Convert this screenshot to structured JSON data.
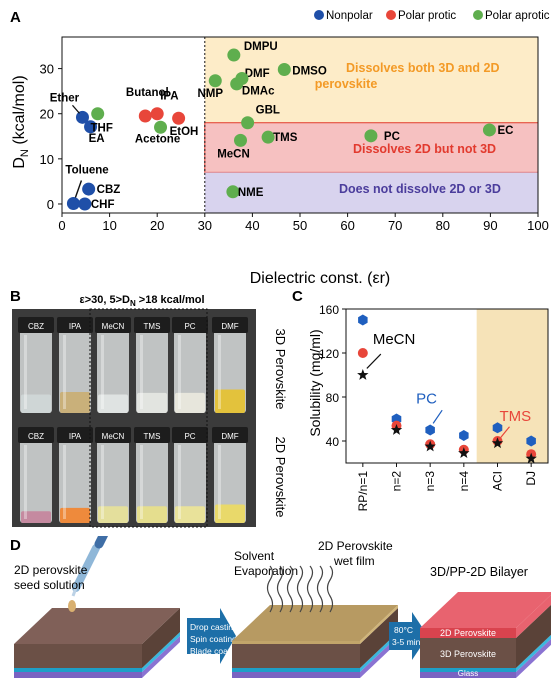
{
  "panel_labels": {
    "a": "A",
    "b": "B",
    "c": "C",
    "d": "D"
  },
  "colors": {
    "nonpolar": "#1f4fa8",
    "polar_protic": "#e8463a",
    "polar_aprotic": "#5fae4e",
    "region_both": "#fdecc8",
    "region_2d": "#f6c1c1",
    "region_none": "#d8d3ee",
    "text_orange": "#f39a26",
    "text_red": "#e23a2e",
    "text_purple": "#4b3d9c",
    "pc_blue": "#1f5fbf",
    "tms_red": "#e8463a",
    "aci_band": "#f6e3b8"
  },
  "chart_data": [
    {
      "type": "scatter",
      "title": "",
      "xlabel": "Dielectric const. (εr)",
      "ylabel": "DN (kcal/mol)",
      "xlim": [
        0,
        100
      ],
      "ylim": [
        -2,
        37
      ],
      "xticks": [
        "0",
        "10",
        "20",
        "30",
        "40",
        "50",
        "60",
        "70",
        "80",
        "90",
        "100"
      ],
      "yticks": [
        "0",
        "10",
        "20",
        "30"
      ],
      "legend": {
        "placement": "top",
        "entries": [
          "Nonpolar",
          "Polar protic",
          "Polar aprotic"
        ]
      },
      "divider_x": 30,
      "regions": [
        {
          "label": "Dissolves both 3D and 2D perovskite",
          "line1": "Dissolves both 3D and 2D",
          "line2": "perovskite",
          "y_from": 18,
          "y_to": 37,
          "color_key": "region_both"
        },
        {
          "label": "Dissolves 2D but not 3D",
          "y_from": 7,
          "y_to": 18,
          "color_key": "region_2d"
        },
        {
          "label": "Does not dissolve 2D or 3D",
          "y_from": -2,
          "y_to": 7,
          "color_key": "region_none"
        }
      ],
      "series": [
        {
          "name": "Nonpolar",
          "color_key": "nonpolar",
          "points": [
            {
              "label": "Ether",
              "x": 4.3,
              "y": 19.2
            },
            {
              "label": "EA",
              "x": 6.0,
              "y": 17.1
            },
            {
              "label": "Toluene",
              "x": 2.4,
              "y": 0.1
            },
            {
              "label": "CBZ",
              "x": 5.6,
              "y": 3.3
            },
            {
              "label": "CHF",
              "x": 4.8,
              "y": 0
            }
          ]
        },
        {
          "name": "Polar protic",
          "color_key": "polar_protic",
          "points": [
            {
              "label": "Butanol",
              "x": 17.5,
              "y": 19.5
            },
            {
              "label": "IPA",
              "x": 20.0,
              "y": 20.0
            },
            {
              "label": "EtOH",
              "x": 24.5,
              "y": 19.0
            }
          ]
        },
        {
          "name": "Polar aprotic",
          "color_key": "polar_aprotic",
          "points": [
            {
              "label": "THF",
              "x": 7.5,
              "y": 20.0
            },
            {
              "label": "Acetone",
              "x": 20.7,
              "y": 17.0
            },
            {
              "label": "DMPU",
              "x": 36.1,
              "y": 33.0
            },
            {
              "label": "DMF",
              "x": 36.7,
              "y": 26.6
            },
            {
              "label": "DMSO",
              "x": 46.7,
              "y": 29.8
            },
            {
              "label": "NMP",
              "x": 32.2,
              "y": 27.3
            },
            {
              "label": "DMAc",
              "x": 37.8,
              "y": 27.8
            },
            {
              "label": "GBL",
              "x": 39.0,
              "y": 18.0
            },
            {
              "label": "MeCN",
              "x": 37.5,
              "y": 14.1
            },
            {
              "label": "TMS",
              "x": 43.3,
              "y": 14.8
            },
            {
              "label": "PC",
              "x": 64.9,
              "y": 15.1
            },
            {
              "label": "EC",
              "x": 89.8,
              "y": 16.4
            },
            {
              "label": "NME",
              "x": 35.9,
              "y": 2.7
            }
          ]
        }
      ]
    },
    {
      "type": "scatter",
      "title": "",
      "xlabel": "",
      "ylabel": "Solubility (mg/ml)",
      "categories": [
        "RP/n=1",
        "n=2",
        "n=3",
        "n=4",
        "ACI",
        "DJ"
      ],
      "ylim": [
        20,
        160
      ],
      "yticks": [
        "40",
        "80",
        "120",
        "160"
      ],
      "shaded_categories": [
        "ACI",
        "DJ"
      ],
      "series": [
        {
          "name": "PC",
          "marker": "hexagon",
          "color_key": "pc_blue",
          "values": [
            150,
            60,
            50,
            45,
            52,
            40
          ]
        },
        {
          "name": "MeCN",
          "marker": "circle",
          "color_key": "tms_red",
          "values": [
            120,
            54,
            37,
            32,
            40,
            28
          ]
        },
        {
          "name": "TMS",
          "marker": "star",
          "color_key": "black",
          "values": [
            100,
            50,
            35,
            29,
            38,
            24
          ]
        }
      ]
    }
  ],
  "panel_b": {
    "header": "ε>30, 5>DN >18 kcal/mol",
    "rows": [
      {
        "label": "3D Perovskite",
        "vials": [
          {
            "cap": "CBZ",
            "liquid": "#cfd6d6",
            "level": 0.22
          },
          {
            "cap": "IPA",
            "liquid": "#c9b07a",
            "level": 0.25
          },
          {
            "cap": "MeCN",
            "liquid": "#dfe3e2",
            "level": 0.22
          },
          {
            "cap": "TMS",
            "liquid": "#e2e4e0",
            "level": 0.24
          },
          {
            "cap": "PC",
            "liquid": "#e7e6dc",
            "level": 0.24
          },
          {
            "cap": "DMF",
            "liquid": "#e3c23c",
            "level": 0.28
          }
        ]
      },
      {
        "label": "2D Perovskite",
        "vials": [
          {
            "cap": "CBZ",
            "liquid": "#c58aa0",
            "level": 0.14
          },
          {
            "cap": "IPA",
            "liquid": "#ee8a3c",
            "level": 0.18
          },
          {
            "cap": "MeCN",
            "liquid": "#e4df9c",
            "level": 0.2
          },
          {
            "cap": "TMS",
            "liquid": "#e5de8e",
            "level": 0.2
          },
          {
            "cap": "PC",
            "liquid": "#e9e29a",
            "level": 0.2
          },
          {
            "cap": "DMF",
            "liquid": "#e9d96a",
            "level": 0.22
          }
        ]
      }
    ]
  },
  "panel_d": {
    "seed_label_line1": "2D perovskite",
    "seed_label_line2": "seed solution",
    "arrow1_lines": [
      "Drop casting",
      "Spin coating",
      "Blade coating"
    ],
    "solvent_line1": "Solvent",
    "solvent_line2": "Evaporation",
    "wetfilm_line1": "2D Perovskite",
    "wetfilm_line2": "wet film",
    "arrow2_line1": "80°C",
    "arrow2_line2": "3-5 min",
    "bilayer_title": "3D/PP-2D Bilayer",
    "layer_2d": "2D Perovskite",
    "layer_3d": "3D Perovskite",
    "layer_glass": "Glass"
  }
}
